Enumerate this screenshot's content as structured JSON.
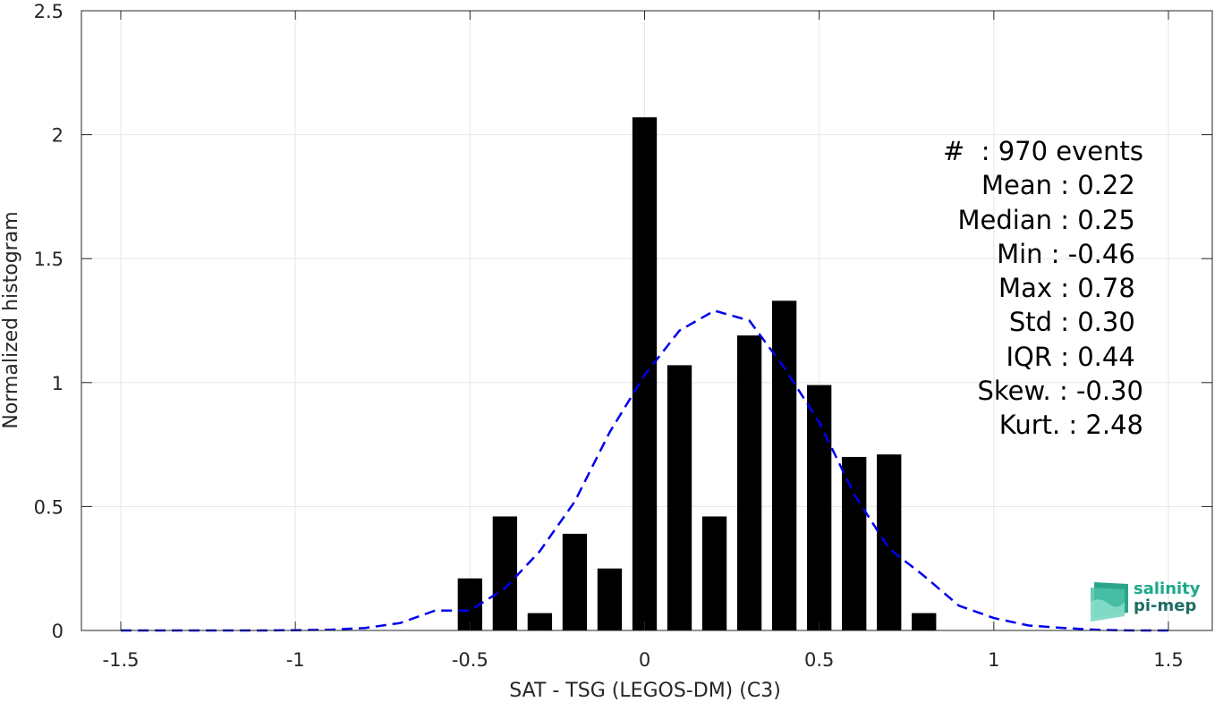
{
  "chart_data": {
    "type": "bar",
    "xlabel": "SAT - TSG (LEGOS-DM) (C3)",
    "ylabel": "Normalized histogram",
    "xlim": [
      -1.5,
      1.5
    ],
    "ylim": [
      0,
      2.5
    ],
    "xticks": [
      "-1.5",
      "-1",
      "-0.5",
      "0",
      "0.5",
      "1",
      "1.5"
    ],
    "yticks": [
      "0",
      "0.5",
      "1",
      "1.5",
      "2",
      "2.5"
    ],
    "grid": true,
    "bar_color": "#000000",
    "bins": [
      -0.5,
      -0.4,
      -0.3,
      -0.2,
      -0.1,
      0.0,
      0.1,
      0.2,
      0.3,
      0.4,
      0.5,
      0.6,
      0.7,
      0.8
    ],
    "values": [
      0.21,
      0.46,
      0.07,
      0.39,
      0.25,
      2.07,
      1.07,
      0.46,
      1.19,
      1.33,
      0.99,
      0.7,
      0.71,
      0.07
    ],
    "fit_line": {
      "style": "dashed",
      "color": "#0000ee",
      "x": [
        -1.5,
        -1.4,
        -1.3,
        -1.2,
        -1.1,
        -1.0,
        -0.9,
        -0.8,
        -0.7,
        -0.6,
        -0.5,
        -0.4,
        -0.3,
        -0.2,
        -0.1,
        0.0,
        0.1,
        0.2,
        0.3,
        0.4,
        0.5,
        0.6,
        0.7,
        0.8,
        0.9,
        1.0,
        1.1,
        1.2,
        1.3,
        1.4,
        1.5
      ],
      "y": [
        0,
        0,
        0,
        0,
        0,
        0.001,
        0.003,
        0.01,
        0.03,
        0.08,
        0.08,
        0.17,
        0.32,
        0.52,
        0.8,
        1.03,
        1.21,
        1.29,
        1.25,
        1.06,
        0.84,
        0.55,
        0.33,
        0.22,
        0.1,
        0.05,
        0.02,
        0.01,
        0.002,
        0,
        0
      ]
    }
  },
  "stats": [
    "#  : 970 events",
    "Mean : 0.22 ",
    "Median : 0.25 ",
    "Min : -0.46 ",
    "Max : 0.78 ",
    "Std : 0.30 ",
    "IQR : 0.44 ",
    "Skew. : -0.30",
    "Kurt. : 2.48"
  ],
  "logo": {
    "line1": "salinity",
    "line2": "pi-mep",
    "color1": "#1aa88a",
    "color2": "#1d6e63"
  }
}
